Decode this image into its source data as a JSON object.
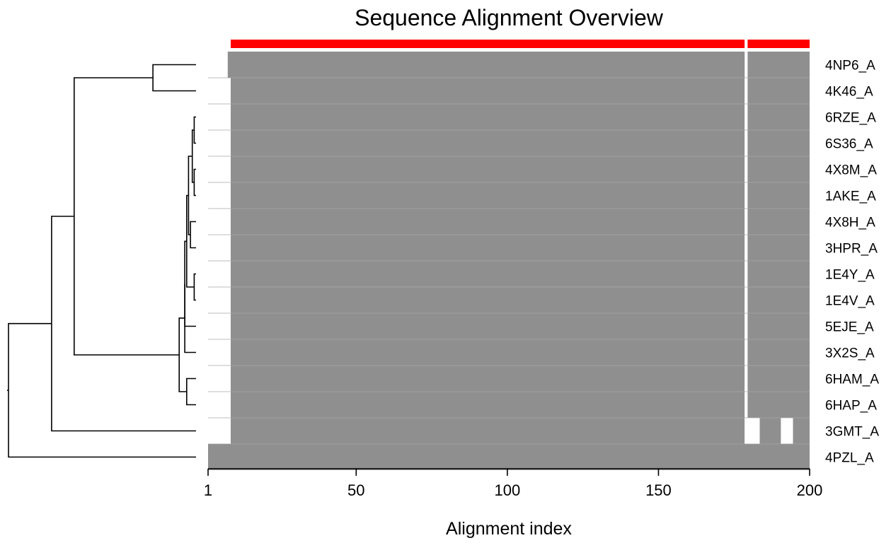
{
  "chart_data": {
    "type": "heatmap",
    "title": "Sequence Alignment Overview",
    "xlabel": "Alignment index",
    "xlim": [
      1,
      200
    ],
    "xticks": [
      1,
      50,
      100,
      150,
      200
    ],
    "sequences": [
      {
        "label": "4NP6_A",
        "segments": [
          [
            8,
            178
          ],
          [
            180,
            200
          ]
        ]
      },
      {
        "label": "4K46_A",
        "segments": [
          [
            9,
            178
          ],
          [
            180,
            200
          ]
        ]
      },
      {
        "label": "6RZE_A",
        "segments": [
          [
            9,
            178
          ],
          [
            180,
            200
          ]
        ]
      },
      {
        "label": "6S36_A",
        "segments": [
          [
            9,
            178
          ],
          [
            180,
            200
          ]
        ]
      },
      {
        "label": "4X8M_A",
        "segments": [
          [
            9,
            178
          ],
          [
            180,
            200
          ]
        ]
      },
      {
        "label": "1AKE_A",
        "segments": [
          [
            9,
            178
          ],
          [
            180,
            200
          ]
        ]
      },
      {
        "label": "4X8H_A",
        "segments": [
          [
            9,
            178
          ],
          [
            180,
            200
          ]
        ]
      },
      {
        "label": "3HPR_A",
        "segments": [
          [
            9,
            178
          ],
          [
            180,
            200
          ]
        ]
      },
      {
        "label": "1E4Y_A",
        "segments": [
          [
            9,
            178
          ],
          [
            180,
            200
          ]
        ]
      },
      {
        "label": "1E4V_A",
        "segments": [
          [
            9,
            178
          ],
          [
            180,
            200
          ]
        ]
      },
      {
        "label": "5EJE_A",
        "segments": [
          [
            9,
            178
          ],
          [
            180,
            200
          ]
        ]
      },
      {
        "label": "3X2S_A",
        "segments": [
          [
            9,
            178
          ],
          [
            180,
            200
          ]
        ]
      },
      {
        "label": "6HAM_A",
        "segments": [
          [
            9,
            178
          ],
          [
            180,
            200
          ]
        ]
      },
      {
        "label": "6HAP_A",
        "segments": [
          [
            9,
            178
          ],
          [
            180,
            200
          ]
        ]
      },
      {
        "label": "3GMT_A",
        "segments": [
          [
            9,
            178
          ],
          [
            184,
            190
          ],
          [
            195,
            200
          ]
        ]
      },
      {
        "label": "4PZL_A",
        "segments": [
          [
            1,
            200
          ]
        ]
      }
    ],
    "conservation_bar": {
      "color": "#ff0000",
      "segments": [
        [
          9,
          178
        ],
        [
          180,
          200
        ]
      ]
    },
    "colors": {
      "aligned": "#8f8f8f",
      "gap": "#ffffff",
      "conservation": "#ff0000",
      "dendrogram": "#000000"
    },
    "dendrogram": {
      "height_range": [
        0,
        1
      ],
      "merges": [
        {
          "left": "4NP6_A",
          "right": "4K46_A",
          "height": 0.23
        },
        {
          "left": "6RZE_A",
          "right": "6S36_A",
          "height": 0.01
        },
        {
          "left": "4X8M_A",
          "right": "1AKE_A",
          "height": 0.01
        },
        {
          "left": "A1",
          "right": "A2",
          "height": 0.02,
          "id": "A3"
        },
        {
          "left": "4X8H_A",
          "right": "3HPR_A",
          "height": 0.03
        },
        {
          "left": "1E4Y_A",
          "right": "1E4V_A",
          "height": 0.01
        },
        {
          "left": "A3",
          "right": "B1",
          "height": 0.04,
          "id": "B2"
        },
        {
          "left": "B2",
          "right": "C1",
          "height": 0.05,
          "id": "C2"
        },
        {
          "left": "C2",
          "right": "5EJE_A",
          "height": 0.06,
          "id": "C3"
        },
        {
          "left": "C3",
          "right": "3X2S_A",
          "height": 0.06,
          "id": "C4"
        },
        {
          "left": "6HAM_A",
          "right": "6HAP_A",
          "height": 0.05
        },
        {
          "left": "C4",
          "right": "D1",
          "height": 0.09,
          "id": "D2"
        },
        {
          "left": "4NP6/4K46",
          "right": "D2",
          "height": 0.65,
          "id": "E1"
        },
        {
          "left": "E1",
          "right": "3GMT_A",
          "height": 0.77,
          "id": "F1"
        },
        {
          "left": "F1",
          "right": "4PZL_A",
          "height": 1.0,
          "id": "root"
        }
      ]
    }
  }
}
